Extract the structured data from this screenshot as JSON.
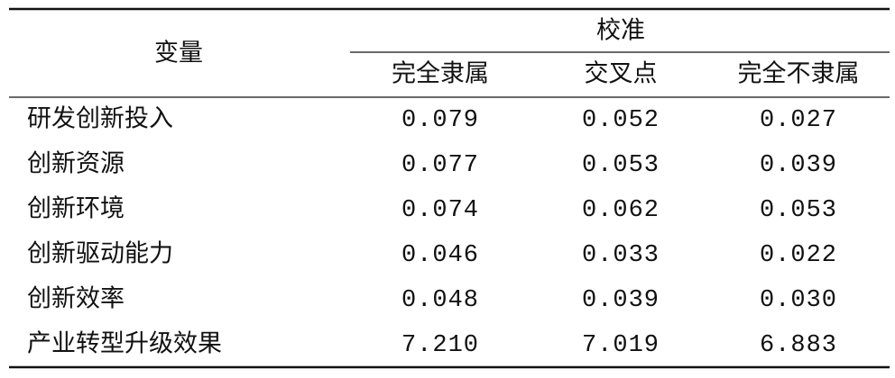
{
  "table": {
    "header": {
      "variable": "变量",
      "group": "校准",
      "columns": [
        "完全隶属",
        "交叉点",
        "完全不隶属"
      ]
    },
    "rows": [
      [
        "研发创新投入",
        "0.079",
        "0.052",
        "0.027"
      ],
      [
        "创新资源",
        "0.077",
        "0.053",
        "0.039"
      ],
      [
        "创新环境",
        "0.074",
        "0.062",
        "0.053"
      ],
      [
        "创新驱动能力",
        "0.046",
        "0.033",
        "0.022"
      ],
      [
        "创新效率",
        "0.048",
        "0.039",
        "0.030"
      ],
      [
        "产业转型升级效果",
        "7.210",
        "7.019",
        "6.883"
      ]
    ]
  }
}
